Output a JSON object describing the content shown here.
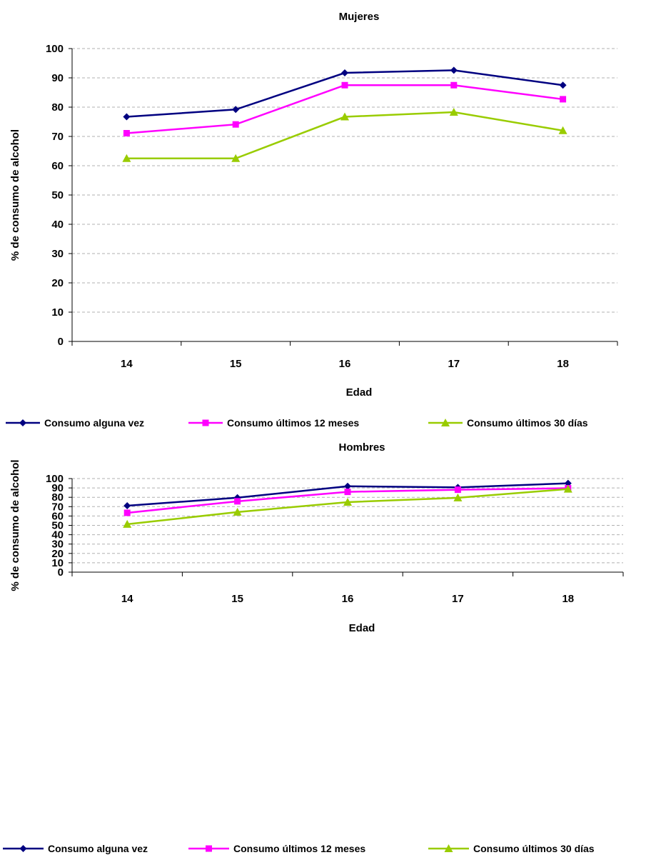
{
  "chart_data": [
    {
      "type": "line",
      "title": "Mujeres",
      "xlabel": "Edad",
      "ylabel": "% de consumo de alcohol",
      "categories": [
        "14",
        "15",
        "16",
        "17",
        "18"
      ],
      "ylim": [
        0,
        100
      ],
      "yticks": [
        "0",
        "10",
        "20",
        "30",
        "40",
        "50",
        "60",
        "70",
        "80",
        "90",
        "100"
      ],
      "grid": true,
      "legend_position": "bottom",
      "series": [
        {
          "name": "Consumo alguna vez",
          "color": "#000080",
          "marker": "diamond",
          "values": [
            76.7,
            79.2,
            91.7,
            92.6,
            87.5
          ]
        },
        {
          "name": "Consumo últimos 12 meses",
          "color": "#ff00ff",
          "marker": "square",
          "values": [
            71.1,
            74.1,
            87.5,
            87.5,
            82.7
          ]
        },
        {
          "name": "Consumo últimos 30 días",
          "color": "#99cc00",
          "marker": "triangle",
          "values": [
            62.5,
            62.5,
            76.7,
            78.3,
            72.0
          ]
        }
      ]
    },
    {
      "type": "line",
      "title": "Hombres",
      "xlabel": "Edad",
      "ylabel": "% de consumo de alcohol",
      "categories": [
        "14",
        "15",
        "16",
        "17",
        "18"
      ],
      "ylim": [
        0,
        100
      ],
      "yticks": [
        "0",
        "10",
        "20",
        "30",
        "40",
        "50",
        "60",
        "70",
        "80",
        "90",
        "100"
      ],
      "grid": true,
      "legend_position": "bottom",
      "series": [
        {
          "name": "Consumo alguna vez",
          "color": "#000080",
          "marker": "diamond",
          "values": [
            71.0,
            79.6,
            91.8,
            90.6,
            94.9
          ]
        },
        {
          "name": "Consumo últimos 12 meses",
          "color": "#ff00ff",
          "marker": "square",
          "values": [
            63.4,
            75.7,
            85.8,
            88.1,
            89.7
          ]
        },
        {
          "name": "Consumo últimos 30 días",
          "color": "#99cc00",
          "marker": "triangle",
          "values": [
            51.2,
            64.2,
            74.8,
            79.5,
            88.8
          ]
        }
      ]
    }
  ]
}
